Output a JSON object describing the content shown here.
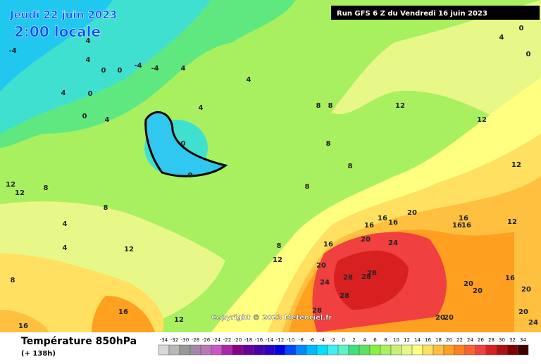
{
  "header": {
    "date": "Jeudi 22 juin 2023",
    "time": "2:00 locale",
    "run": "Run GFS 6 Z du Vendredi 16 juin 2023",
    "copyright": "Copyright © 2023 Meteociel.fr"
  },
  "footer": {
    "title": "Température 850hPa",
    "lead": "(+ 138h)"
  },
  "contour_labels": [
    -4,
    4,
    4,
    0,
    0,
    -4,
    -4,
    4,
    4,
    0,
    0,
    4,
    4,
    4,
    0,
    0,
    8,
    8,
    8,
    8,
    8,
    12,
    12,
    12,
    12,
    12,
    8,
    8,
    4,
    4,
    12,
    8,
    8,
    12,
    16,
    16,
    16,
    20,
    16,
    16,
    16,
    12,
    16,
    20,
    24,
    20,
    24,
    28,
    28,
    28,
    28,
    28,
    20,
    20,
    16,
    20,
    20,
    24,
    20,
    20,
    16,
    12,
    16,
    0,
    4,
    0
  ],
  "scale": {
    "values": [
      -34,
      -32,
      -30,
      -28,
      -26,
      -24,
      -22,
      -20,
      -18,
      -16,
      -14,
      -12,
      -10,
      -8,
      -6,
      -4,
      -2,
      0,
      2,
      4,
      6,
      8,
      10,
      12,
      14,
      16,
      18,
      20,
      22,
      24,
      26,
      28,
      30,
      32,
      34
    ],
    "colors": [
      "#d8d8d8",
      "#b8b8b8",
      "#989898",
      "#a08aa8",
      "#b878b8",
      "#c858c8",
      "#a828a8",
      "#880088",
      "#6a0098",
      "#4a00a8",
      "#2a00c8",
      "#0000e8",
      "#0048ff",
      "#0088ff",
      "#00b8ff",
      "#00e0ff",
      "#40f0f0",
      "#60f0c8",
      "#40e080",
      "#60e060",
      "#88f040",
      "#a8f060",
      "#c8f078",
      "#e8f888",
      "#ffff80",
      "#ffe060",
      "#ffc040",
      "#ffa020",
      "#ff8020",
      "#ff6030",
      "#f04040",
      "#d82020",
      "#b01010",
      "#800000",
      "#400000"
    ]
  }
}
